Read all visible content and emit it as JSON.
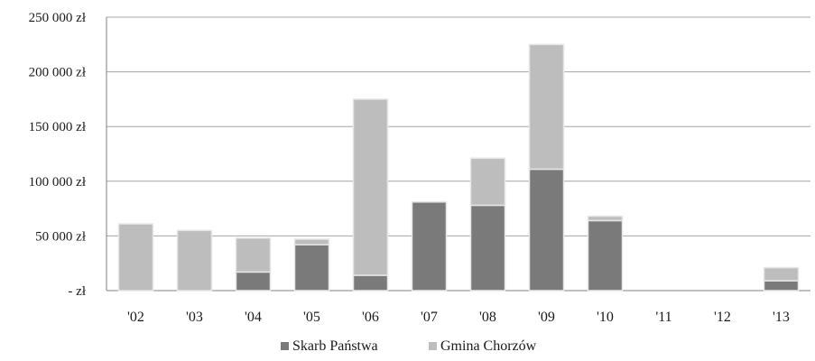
{
  "chart_data": {
    "type": "bar",
    "stacked": true,
    "categories": [
      "'02",
      "'03",
      "'04",
      "'05",
      "'06",
      "'07",
      "'08",
      "'09",
      "'10",
      "'11",
      "'12",
      "'13"
    ],
    "series": [
      {
        "name": "Skarb Państwa",
        "color": "#7a7a7a",
        "values": [
          0,
          0,
          17000,
          42000,
          14000,
          81000,
          78000,
          111000,
          64000,
          0,
          0,
          9000
        ]
      },
      {
        "name": "Gmina Chorzów",
        "color": "#bdbdbd",
        "values": [
          61000,
          55000,
          31000,
          5000,
          161000,
          0,
          43000,
          114000,
          4000,
          0,
          0,
          12000
        ]
      }
    ],
    "y_ticks": [
      {
        "value": 0,
        "label": "-   zł"
      },
      {
        "value": 50000,
        "label": "50 000 zł"
      },
      {
        "value": 100000,
        "label": "100 000 zł"
      },
      {
        "value": 150000,
        "label": "150 000 zł"
      },
      {
        "value": 200000,
        "label": "200 000 zł"
      },
      {
        "value": 250000,
        "label": "250 000 zł"
      }
    ],
    "ylim": [
      0,
      250000
    ],
    "grid": true,
    "legend_position": "bottom",
    "title": "",
    "xlabel": "",
    "ylabel": "",
    "gridline_color": "#a6a6a6",
    "axis_color": "#808080"
  }
}
